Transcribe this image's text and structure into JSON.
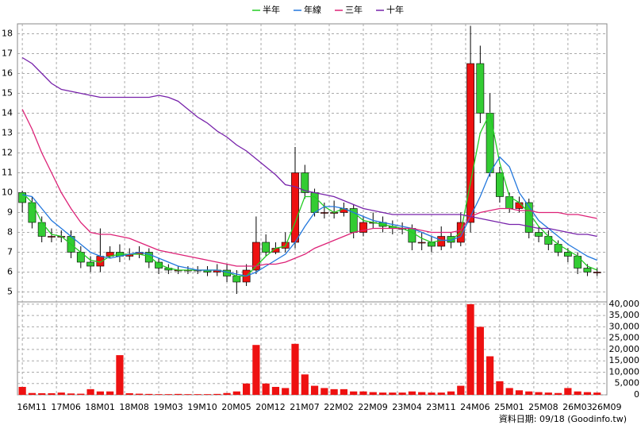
{
  "chart_data": {
    "type": "candlestick",
    "x": [
      0,
      2,
      4,
      6,
      8,
      10,
      12,
      14,
      16,
      18,
      20,
      22,
      24,
      26,
      28,
      30,
      32,
      34,
      36,
      38,
      40,
      42,
      44,
      46,
      48,
      50,
      52,
      54,
      56,
      58,
      60,
      62,
      64,
      66,
      68,
      70,
      72,
      74,
      76,
      78,
      80,
      82,
      84,
      86,
      88,
      90,
      92,
      94,
      96,
      98,
      100,
      102,
      104,
      106,
      108,
      110,
      112,
      114,
      116,
      118
    ],
    "open": [
      10.0,
      9.5,
      8.5,
      7.8,
      7.8,
      7.8,
      7.0,
      6.5,
      6.3,
      6.8,
      7.0,
      6.8,
      6.9,
      7.0,
      6.5,
      6.2,
      6.1,
      6.1,
      6.1,
      6.1,
      6.0,
      6.1,
      5.8,
      5.5,
      6.1,
      7.5,
      7.0,
      7.2,
      7.5,
      11.0,
      10.0,
      9.0,
      9.0,
      9.0,
      9.2,
      8.0,
      8.5,
      8.5,
      8.3,
      8.2,
      8.2,
      7.5,
      7.5,
      7.3,
      7.8,
      7.5,
      8.5,
      16.5,
      14.0,
      11.0,
      9.8,
      9.2,
      9.5,
      8.0,
      7.8,
      7.4,
      7.0,
      6.8,
      6.2,
      6.0
    ],
    "high": [
      10.1,
      9.8,
      8.8,
      8.2,
      8.1,
      8.1,
      7.3,
      6.8,
      8.2,
      7.3,
      7.4,
      7.2,
      7.3,
      7.2,
      6.7,
      6.4,
      6.3,
      6.3,
      6.3,
      6.3,
      6.4,
      6.4,
      6.1,
      6.4,
      8.8,
      7.9,
      7.5,
      8.0,
      12.3,
      11.4,
      10.2,
      9.5,
      9.6,
      9.5,
      9.4,
      8.8,
      9.0,
      8.8,
      8.6,
      8.5,
      8.4,
      8.0,
      7.8,
      8.3,
      8.0,
      9.0,
      18.4,
      17.4,
      15.0,
      11.3,
      10.0,
      9.8,
      9.7,
      8.3,
      8.1,
      7.6,
      7.2,
      7.0,
      6.4,
      6.2
    ],
    "low": [
      9.0,
      8.2,
      7.5,
      7.5,
      7.5,
      6.7,
      6.2,
      6.0,
      6.0,
      6.7,
      6.5,
      6.6,
      6.7,
      6.2,
      5.9,
      5.9,
      5.9,
      5.9,
      5.9,
      5.8,
      5.8,
      5.5,
      4.9,
      5.3,
      5.9,
      6.8,
      6.9,
      7.0,
      7.2,
      9.7,
      8.8,
      8.7,
      8.7,
      8.8,
      7.7,
      7.8,
      8.2,
      8.0,
      7.9,
      7.9,
      7.1,
      7.1,
      7.0,
      7.1,
      7.2,
      7.3,
      8.0,
      13.5,
      10.8,
      9.5,
      9.0,
      9.0,
      7.7,
      7.5,
      7.1,
      6.8,
      6.5,
      5.9,
      5.8,
      5.8
    ],
    "close": [
      9.5,
      8.5,
      7.8,
      7.8,
      7.8,
      7.0,
      6.5,
      6.3,
      6.8,
      7.0,
      6.8,
      6.9,
      7.0,
      6.5,
      6.2,
      6.1,
      6.1,
      6.1,
      6.1,
      6.0,
      6.1,
      5.8,
      5.5,
      6.1,
      7.5,
      7.0,
      7.2,
      7.5,
      11.0,
      10.0,
      9.0,
      9.0,
      9.0,
      9.2,
      8.0,
      8.5,
      8.5,
      8.3,
      8.2,
      8.2,
      7.5,
      7.5,
      7.3,
      7.8,
      7.5,
      8.5,
      16.5,
      14.0,
      11.0,
      9.8,
      9.2,
      9.5,
      8.0,
      7.8,
      7.4,
      7.0,
      6.8,
      6.2,
      6.0,
      6.0
    ],
    "volume": [
      3500,
      800,
      700,
      700,
      1000,
      600,
      500,
      2500,
      1500,
      1500,
      17500,
      700,
      500,
      400,
      300,
      300,
      400,
      300,
      300,
      300,
      400,
      800,
      1500,
      5000,
      22000,
      5000,
      3500,
      3000,
      22500,
      9000,
      4000,
      3000,
      2500,
      2500,
      1500,
      1500,
      1200,
      1000,
      1000,
      1000,
      1500,
      1200,
      1000,
      1000,
      1500,
      4000,
      40000,
      30000,
      17000,
      6000,
      3000,
      2000,
      1500,
      1200,
      1000,
      800,
      3000,
      1500,
      1200,
      1000
    ],
    "up_color": "#ee1111",
    "down_color": "#33cc33",
    "volume_color": "#ee1111",
    "ma": [
      {
        "name": "半年",
        "color": "#22cc22",
        "values": [
          10.0,
          9.5,
          8.5,
          7.9,
          7.8,
          7.4,
          7.0,
          6.6,
          6.5,
          6.8,
          6.9,
          6.9,
          6.9,
          6.8,
          6.4,
          6.2,
          6.1,
          6.1,
          6.1,
          6.1,
          6.1,
          6.0,
          5.8,
          5.8,
          6.3,
          6.8,
          7.2,
          7.3,
          8.5,
          9.8,
          9.8,
          9.3,
          9.0,
          9.2,
          9.0,
          8.6,
          8.5,
          8.4,
          8.3,
          8.2,
          8.0,
          7.7,
          7.5,
          7.6,
          7.6,
          8.0,
          10.5,
          13.0,
          14.0,
          11.5,
          9.8,
          9.5,
          9.0,
          8.3,
          7.8,
          7.4,
          7.1,
          6.8,
          6.3,
          6.1
        ]
      },
      {
        "name": "年線",
        "color": "#2277dd",
        "values": [
          9.9,
          9.8,
          9.2,
          8.6,
          8.2,
          7.8,
          7.4,
          7.0,
          6.8,
          6.7,
          6.8,
          6.9,
          7.0,
          6.9,
          6.7,
          6.5,
          6.3,
          6.2,
          6.1,
          6.1,
          6.1,
          6.0,
          5.9,
          5.8,
          6.0,
          6.3,
          6.6,
          6.9,
          7.5,
          8.3,
          9.0,
          9.3,
          9.3,
          9.2,
          9.0,
          8.8,
          8.6,
          8.5,
          8.4,
          8.3,
          8.2,
          8.0,
          7.8,
          7.6,
          7.6,
          7.8,
          8.8,
          9.8,
          11.0,
          11.8,
          11.3,
          10.0,
          9.3,
          8.6,
          8.2,
          7.8,
          7.4,
          7.1,
          6.8,
          6.6
        ]
      },
      {
        "name": "三年",
        "color": "#dd2277",
        "values": [
          14.2,
          13.2,
          12.0,
          11.0,
          10.0,
          9.2,
          8.5,
          8.0,
          7.9,
          7.9,
          7.8,
          7.7,
          7.5,
          7.3,
          7.1,
          7.0,
          6.9,
          6.8,
          6.7,
          6.6,
          6.5,
          6.4,
          6.3,
          6.3,
          6.3,
          6.4,
          6.4,
          6.5,
          6.7,
          6.9,
          7.2,
          7.4,
          7.6,
          7.8,
          8.0,
          8.1,
          8.2,
          8.2,
          8.2,
          8.2,
          8.2,
          8.1,
          8.0,
          8.0,
          8.0,
          8.1,
          8.8,
          9.0,
          9.1,
          9.2,
          9.2,
          9.1,
          9.1,
          9.0,
          9.0,
          9.0,
          8.9,
          8.9,
          8.8,
          8.7
        ]
      },
      {
        "name": "十年",
        "color": "#7722aa",
        "values": [
          16.8,
          16.5,
          16.0,
          15.5,
          15.2,
          15.1,
          15.0,
          14.9,
          14.8,
          14.8,
          14.8,
          14.8,
          14.8,
          14.8,
          14.9,
          14.8,
          14.6,
          14.2,
          13.8,
          13.5,
          13.1,
          12.8,
          12.4,
          12.1,
          11.7,
          11.3,
          10.9,
          10.4,
          10.3,
          10.1,
          10.0,
          9.9,
          9.8,
          9.6,
          9.4,
          9.2,
          9.1,
          9.0,
          8.9,
          8.9,
          8.9,
          8.9,
          8.9,
          8.9,
          8.9,
          8.9,
          8.8,
          8.7,
          8.6,
          8.5,
          8.4,
          8.4,
          8.3,
          8.2,
          8.2,
          8.1,
          8.0,
          7.9,
          7.9,
          7.8
        ]
      }
    ],
    "xlim": [
      -1,
      120
    ],
    "xticks": [
      {
        "value": 0,
        "label": "16M11"
      },
      {
        "value": 7,
        "label": "17M06"
      },
      {
        "value": 14,
        "label": "18M01"
      },
      {
        "value": 21,
        "label": "18M08"
      },
      {
        "value": 28,
        "label": "19M03"
      },
      {
        "value": 35,
        "label": "19M10"
      },
      {
        "value": 42,
        "label": "20M05"
      },
      {
        "value": 49,
        "label": "20M12"
      },
      {
        "value": 56,
        "label": "21M07"
      },
      {
        "value": 63,
        "label": "22M02"
      },
      {
        "value": 70,
        "label": "22M09"
      },
      {
        "value": 77,
        "label": "23M04"
      },
      {
        "value": 84,
        "label": "23M11"
      },
      {
        "value": 91,
        "label": "24M06"
      },
      {
        "value": 98,
        "label": "25M01"
      },
      {
        "value": 105,
        "label": "25M08"
      },
      {
        "value": 112,
        "label": "26M03"
      },
      {
        "value": 118,
        "label": "26M09"
      }
    ],
    "ylim": [
      4.5,
      18.5
    ],
    "yticks": [
      5,
      6,
      7,
      8,
      9,
      10,
      11,
      12,
      13,
      14,
      15,
      16,
      17,
      18
    ],
    "y2lim": [
      0,
      41000
    ],
    "y2ticks": [
      0,
      {
        "value": 5000,
        "label": "5,000"
      },
      {
        "value": 10000,
        "label": "10,000"
      },
      {
        "value": 15000,
        "label": "15,000"
      },
      {
        "value": 20000,
        "label": "20,000"
      },
      {
        "value": 25000,
        "label": "25,000"
      },
      {
        "value": 30000,
        "label": "30,000"
      },
      {
        "value": 35000,
        "label": "35,000"
      },
      {
        "value": 40000,
        "label": "40,000"
      }
    ],
    "grid": true,
    "footer": "資料日期: 09/18 (Goodinfo.tw)"
  }
}
